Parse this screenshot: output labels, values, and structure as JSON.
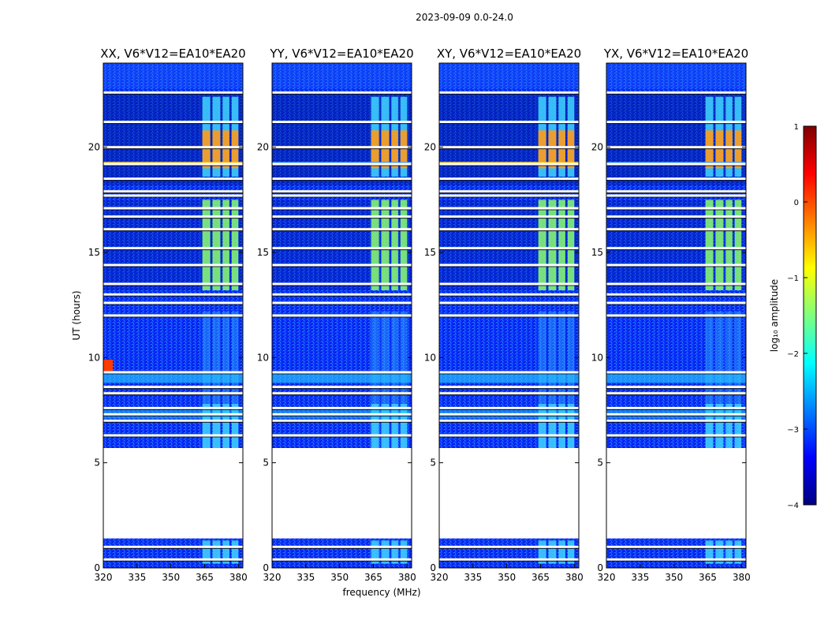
{
  "chart_data": {
    "type": "heatmap",
    "suptitle": "2023-09-09 0.0-24.0",
    "xlabel": "frequency (MHz)",
    "ylabel": "UT (hours)",
    "xlim": [
      320,
      382
    ],
    "ylim": [
      0,
      24
    ],
    "xticks": [
      "320",
      "335",
      "350",
      "365",
      "380"
    ],
    "yticks": [
      "0",
      "5",
      "10",
      "15",
      "20"
    ],
    "colorbar": {
      "label": "log₁₀ amplitude",
      "range": [
        -4,
        1
      ],
      "ticks": [
        "−4",
        "−3",
        "−2",
        "−1",
        "0",
        "1"
      ],
      "colors": [
        "#00007f",
        "#0000ff",
        "#007fff",
        "#00ffff",
        "#7fff7f",
        "#ffff00",
        "#ff7f00",
        "#ff0000",
        "#7f0000"
      ]
    },
    "panels": [
      {
        "title": "XX, V6*V12=EA10*EA20",
        "polarization": "XX"
      },
      {
        "title": "YY, V6*V12=EA10*EA20",
        "polarization": "YY"
      },
      {
        "title": "XY, V6*V12=EA10*EA20",
        "polarization": "XY"
      },
      {
        "title": "YX, V6*V12=EA10*EA20",
        "polarization": "YX"
      }
    ],
    "no_data_ut": [
      [
        1.4,
        5.7
      ]
    ],
    "flagged_ut_rows": [
      0.4,
      1.0,
      6.3,
      7.0,
      7.3,
      7.6,
      8.3,
      8.6,
      9.3,
      12.0,
      12.6,
      13.0,
      13.5,
      14.4,
      15.2,
      16.1,
      16.7,
      17.1,
      17.7,
      17.9,
      18.5,
      19.2,
      20.0,
      21.2,
      22.6
    ],
    "rfi_bands_mhz": [
      [
        364,
        367.5
      ],
      [
        368.5,
        372
      ],
      [
        373,
        376
      ],
      [
        377,
        380
      ]
    ],
    "rfi_active_ut": [
      [
        0.2,
        1.3
      ],
      [
        5.7,
        7.8
      ],
      [
        13.2,
        17.5
      ],
      [
        18.6,
        22.4
      ]
    ],
    "strong_rfi_ut": [
      [
        19.0,
        20.8
      ]
    ]
  }
}
